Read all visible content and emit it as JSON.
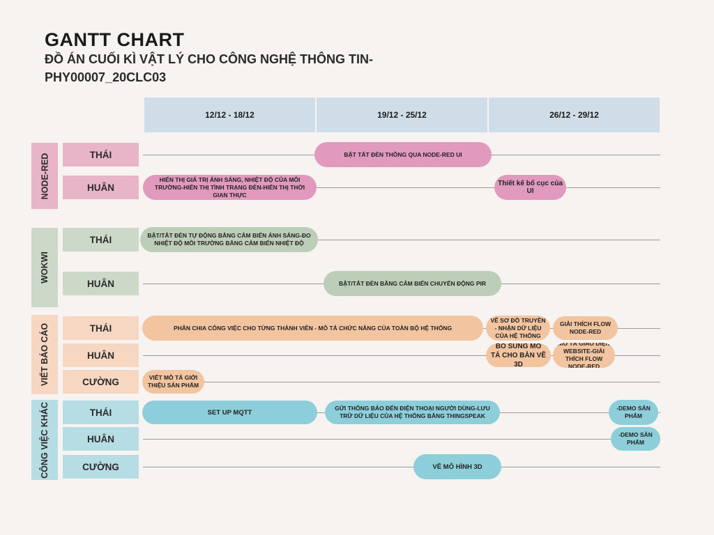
{
  "title": "GANTT CHART",
  "subtitle": "ĐỒ ÁN CUỐI KÌ VẬT LÝ CHO CÔNG NGHỆ THÔNG TIN-PHY00007_20CLC03",
  "colors": {
    "node_red": "#e8b4c8",
    "node_red_bar": "#e199bd",
    "wokwi": "#ccd9c9",
    "wokwi_bar": "#bccdb8",
    "bao_cao": "#f7d7c2",
    "bao_cao_bar": "#f2c4a0",
    "khac": "#b7dde4",
    "khac_bar": "#8ccfda",
    "header": "#cfdde8"
  },
  "chart_data": {
    "type": "gantt",
    "title": "GANTT CHART",
    "subtitle": "ĐỒ ÁN CUỐI KÌ VẬT LÝ CHO CÔNG NGHỆ THÔNG TIN-PHY00007_20CLC03",
    "periods": [
      "12/12 - 18/12",
      "19/12 - 25/12",
      "26/12 - 29/12"
    ],
    "groups": [
      {
        "name": "NODE-RED",
        "rows": [
          {
            "member": "THÁI",
            "tasks": [
              {
                "label": "BẬT TẮT ĐÈN THÔNG QUA NODE-RED UI",
                "start": "19/12",
                "end": "26/12"
              }
            ]
          },
          {
            "member": "HUÂN",
            "tasks": [
              {
                "label": "HIỂN THỊ GIÁ TRỊ ÁNH SÁNG, NHIỆT ĐỘ CỦA MÔI TRƯỜNG-HIỂN THỊ TÌNH TRẠNG ĐÈN-HIỂN THỊ THỜI GIAN THỰC",
                "start": "12/12",
                "end": "18/12"
              },
              {
                "label": "Thiết kế bố cục của UI",
                "start": "26/12",
                "end": "27/12"
              }
            ]
          }
        ]
      },
      {
        "name": "WOKWI",
        "rows": [
          {
            "member": "THÁI",
            "tasks": [
              {
                "label": "BẬT/TẮT ĐÈN TỰ ĐỘNG BẰNG CẢM BIẾN ÁNH SÁNG-ĐO NHIỆT ĐỘ MÔI TRƯỜNG BẰNG CẢM BIẾN NHIỆT ĐỘ",
                "start": "12/12",
                "end": "18/12"
              }
            ]
          },
          {
            "member": "HUÂN",
            "tasks": [
              {
                "label": "BẬT/TẮT ĐÈN BẰNG CẢM BIẾN CHUYỂN ĐỘNG PIR",
                "start": "19/12",
                "end": "25/12"
              }
            ]
          }
        ]
      },
      {
        "name": "VIẾT BÁO CÁO",
        "rows": [
          {
            "member": "THÁI",
            "tasks": [
              {
                "label": "PHÂN CHIA CÔNG VIỆC CHO TỪNG THÀNH VIÊN - MÔ TẢ CHỨC NĂNG CỦA TOÀN BỘ HỆ THỐNG",
                "start": "12/12",
                "end": "25/12"
              },
              {
                "label": "VẼ SƠ ĐỒ TRUYỀN - NHẬN DỮ LIỆU CỦA HỆ THỐNG",
                "start": "26/12",
                "end": "26/12"
              },
              {
                "label": "GIẢI THÍCH FLOW NODE-RED",
                "start": "27/12",
                "end": "28/12"
              }
            ]
          },
          {
            "member": "HUÂN",
            "tasks": [
              {
                "label": "BỔ SUNG MÔ TẢ CHO BẢN VẼ 3D",
                "start": "26/12",
                "end": "26/12"
              },
              {
                "label": "MÔ TẢ GIAO DIỆN WEBSITE-GIẢI THÍCH FLOW NODE-RED",
                "start": "27/12",
                "end": "28/12"
              }
            ]
          },
          {
            "member": "CƯỜNG",
            "tasks": [
              {
                "label": "VIẾT MÔ TẢ GIỚI THIỆU SẢN PHẨM",
                "start": "12/12",
                "end": "13/12"
              }
            ]
          }
        ]
      },
      {
        "name": "CÔNG VIỆC KHÁC",
        "rows": [
          {
            "member": "THÁI",
            "tasks": [
              {
                "label": "SET UP MQTT",
                "start": "12/12",
                "end": "18/12"
              },
              {
                "label": "GỬI THÔNG BÁO ĐẾN ĐIỆN THOẠI NGƯỜI DÙNG-LƯU TRỮ DỮ LIỆU CỦA HỆ THỐNG BẰNG THINGSPEAK",
                "start": "19/12",
                "end": "25/12"
              },
              {
                "label": "-DEMO SẢN PHẨM",
                "start": "29/12",
                "end": "29/12"
              }
            ]
          },
          {
            "member": "HUÂN",
            "tasks": [
              {
                "label": "-DEMO SẢN PHẨM",
                "start": "29/12",
                "end": "29/12"
              }
            ]
          },
          {
            "member": "CƯỜNG",
            "tasks": [
              {
                "label": "VẼ MÔ HÌNH 3D",
                "start": "23/12",
                "end": "25/12"
              }
            ]
          }
        ]
      }
    ]
  }
}
